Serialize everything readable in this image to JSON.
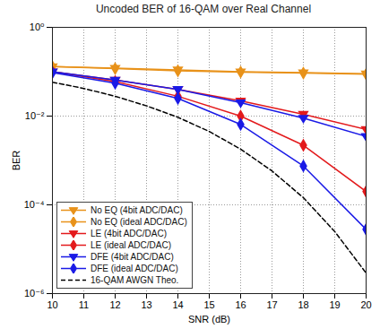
{
  "chart_data": {
    "type": "line",
    "title": "Uncoded BER of 16-QAM over Real Channel",
    "x_label": "SNR (dB)",
    "y_label": "BER",
    "log": "y",
    "grid": true,
    "legend": "lower left",
    "xlim": [
      10,
      20
    ],
    "xticks": [
      10,
      11,
      12,
      13,
      14,
      15,
      16,
      17,
      18,
      19,
      20
    ],
    "ylim": [
      1e-06,
      1
    ],
    "yticks": [
      {
        "value": 1e-06,
        "label": "10⁻⁶"
      },
      {
        "value": 0.0001,
        "label": "10⁻⁴"
      },
      {
        "value": 0.01,
        "label": "10⁻²"
      },
      {
        "value": 1,
        "label": "10⁰"
      }
    ],
    "series": [
      {
        "name": "No EQ (4bit ADC/DAC)",
        "color": "#e8921a",
        "marker": "triangle-down",
        "line_style": "solid",
        "x": [
          10,
          12,
          14,
          16,
          18,
          20
        ],
        "values": [
          0.13,
          0.12,
          0.11,
          0.1,
          0.095,
          0.09
        ]
      },
      {
        "name": "No EQ (ideal ADC/DAC)",
        "color": "#e8921a",
        "marker": "diamond",
        "line_style": "solid",
        "x": [
          10,
          12,
          14,
          16,
          18,
          20
        ],
        "values": [
          0.13,
          0.118,
          0.105,
          0.098,
          0.093,
          0.088
        ]
      },
      {
        "name": "LE (4bit ADC/DAC)",
        "color": "#e31a1c",
        "marker": "triangle-down",
        "line_style": "solid",
        "x": [
          10,
          12,
          14,
          16,
          18,
          20
        ],
        "values": [
          0.1,
          0.065,
          0.04,
          0.022,
          0.011,
          0.005
        ]
      },
      {
        "name": "LE (ideal ADC/DAC)",
        "color": "#e31a1c",
        "marker": "diamond",
        "line_style": "solid",
        "x": [
          10,
          12,
          14,
          16,
          18,
          20
        ],
        "values": [
          0.1,
          0.06,
          0.028,
          0.01,
          0.0022,
          0.0002
        ]
      },
      {
        "name": "DFE (4bit ADC/DAC)",
        "color": "#1a1ae6",
        "marker": "triangle-down",
        "line_style": "solid",
        "x": [
          10,
          12,
          14,
          16,
          18,
          20
        ],
        "values": [
          0.1,
          0.065,
          0.04,
          0.02,
          0.009,
          0.0035
        ]
      },
      {
        "name": "DFE (ideal ADC/DAC)",
        "color": "#1a1ae6",
        "marker": "diamond",
        "line_style": "solid",
        "x": [
          10,
          12,
          14,
          16,
          18,
          20
        ],
        "values": [
          0.095,
          0.055,
          0.025,
          0.0065,
          0.00075,
          2.8e-05
        ]
      },
      {
        "name": "16-QAM AWGN Theo.",
        "color": "#000000",
        "marker": "none",
        "line_style": "dashed",
        "x": [
          10,
          11,
          12,
          13,
          14,
          15,
          16,
          17,
          18,
          19,
          20
        ],
        "values": [
          0.058,
          0.042,
          0.028,
          0.017,
          0.0094,
          0.0045,
          0.0018,
          0.00058,
          0.000145,
          2.5e-05,
          2.9e-06
        ]
      }
    ]
  }
}
